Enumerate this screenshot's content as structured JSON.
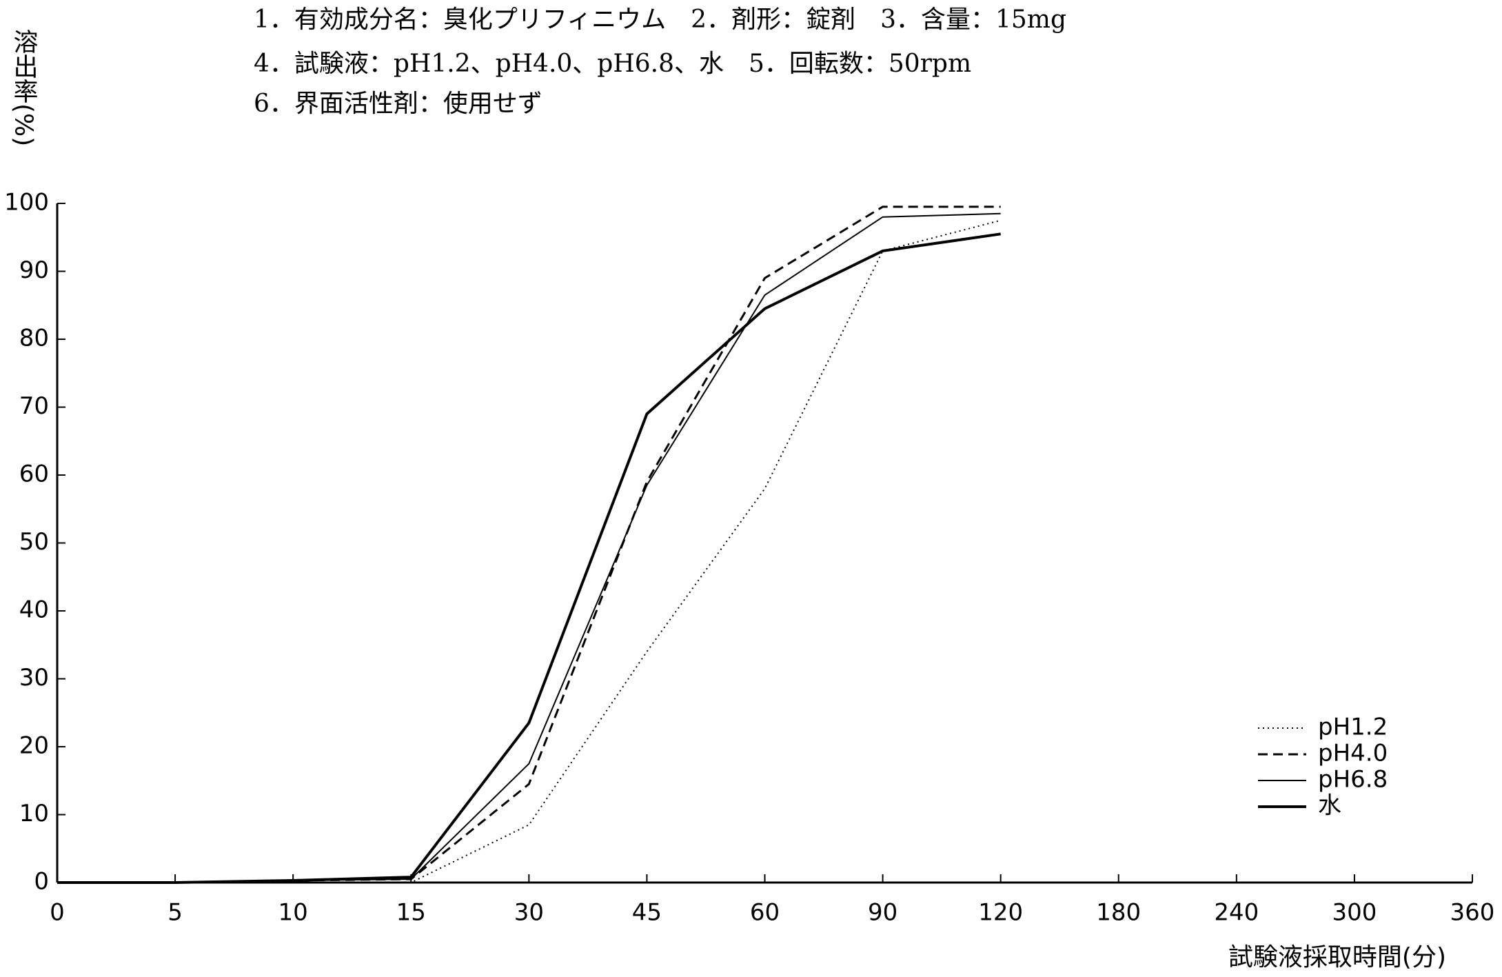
{
  "chart_data": {
    "type": "line",
    "title_lines": [
      "1．有効成分名：臭化プリフィニウム　2．剤形：錠剤　3．含量：15mg",
      "4．試験液：pH1.2、pH4.0、pH6.8、水　5．回転数：50rpm",
      "6．界面活性剤：使用せず"
    ],
    "y_label": "溶出率(%)",
    "x_label": "試験液採取時間(分)",
    "categories": [
      0,
      5,
      10,
      15,
      30,
      45,
      60,
      90,
      120,
      180,
      240,
      300,
      360
    ],
    "series": [
      {
        "name": "pH1.2",
        "color": "#000000",
        "style": "dotted",
        "values": [
          0,
          0,
          0,
          0,
          8.5,
          34,
          58,
          93,
          97.5,
          null,
          null,
          null,
          null
        ]
      },
      {
        "name": "pH4.0",
        "color": "#000000",
        "style": "dashed",
        "values": [
          0,
          0,
          0.3,
          0.5,
          14.5,
          59,
          89,
          99.5,
          99.5,
          null,
          null,
          null,
          null
        ]
      },
      {
        "name": "pH6.8",
        "color": "#000000",
        "style": "thin",
        "values": [
          0,
          0,
          0.3,
          0.5,
          17.5,
          58.5,
          86.5,
          98,
          98.5,
          null,
          null,
          null,
          null
        ]
      },
      {
        "name": "水",
        "color": "#000000",
        "style": "thick",
        "values": [
          0,
          0,
          0.3,
          0.8,
          23.5,
          69,
          84.5,
          93,
          95.5,
          null,
          null,
          null,
          null
        ]
      }
    ],
    "ylim": [
      0,
      100
    ],
    "yticks": [
      0,
      10,
      20,
      30,
      40,
      50,
      60,
      70,
      80,
      90,
      100
    ],
    "legend": "lower right",
    "grid": false
  }
}
